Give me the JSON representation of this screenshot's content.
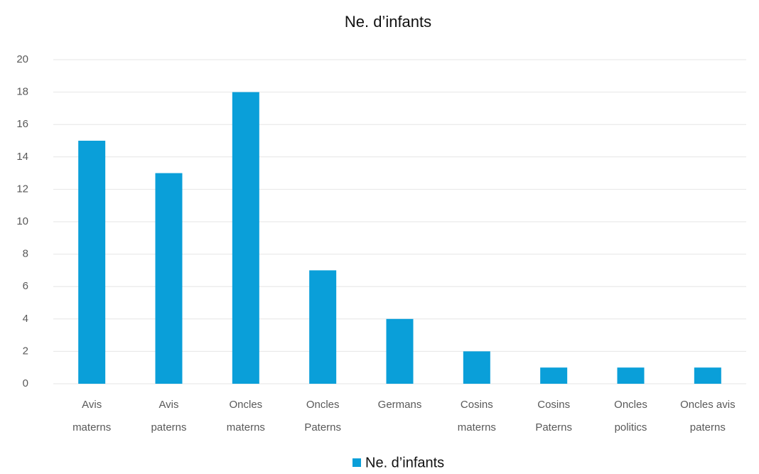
{
  "chart_data": {
    "type": "bar",
    "title": "Ne. d’infants",
    "categories": [
      [
        "Avis",
        "materns"
      ],
      [
        "Avis",
        "paterns"
      ],
      [
        "Oncles",
        "materns"
      ],
      [
        "Oncles",
        "Paterns"
      ],
      [
        "Germans"
      ],
      [
        "Cosins",
        "materns"
      ],
      [
        "Cosins",
        "Paterns"
      ],
      [
        "Oncles",
        "politics"
      ],
      [
        "Oncles avis",
        "paterns"
      ]
    ],
    "series": [
      {
        "name": "Ne. d’infants",
        "color": "#0a9fd9",
        "values": [
          15,
          13,
          18,
          7,
          4,
          2,
          1,
          1,
          1
        ]
      }
    ],
    "ylim": [
      0,
      20
    ],
    "yticks": [
      0,
      2,
      4,
      6,
      8,
      10,
      12,
      14,
      16,
      18,
      20
    ],
    "grid": true,
    "legend": "bottom"
  }
}
